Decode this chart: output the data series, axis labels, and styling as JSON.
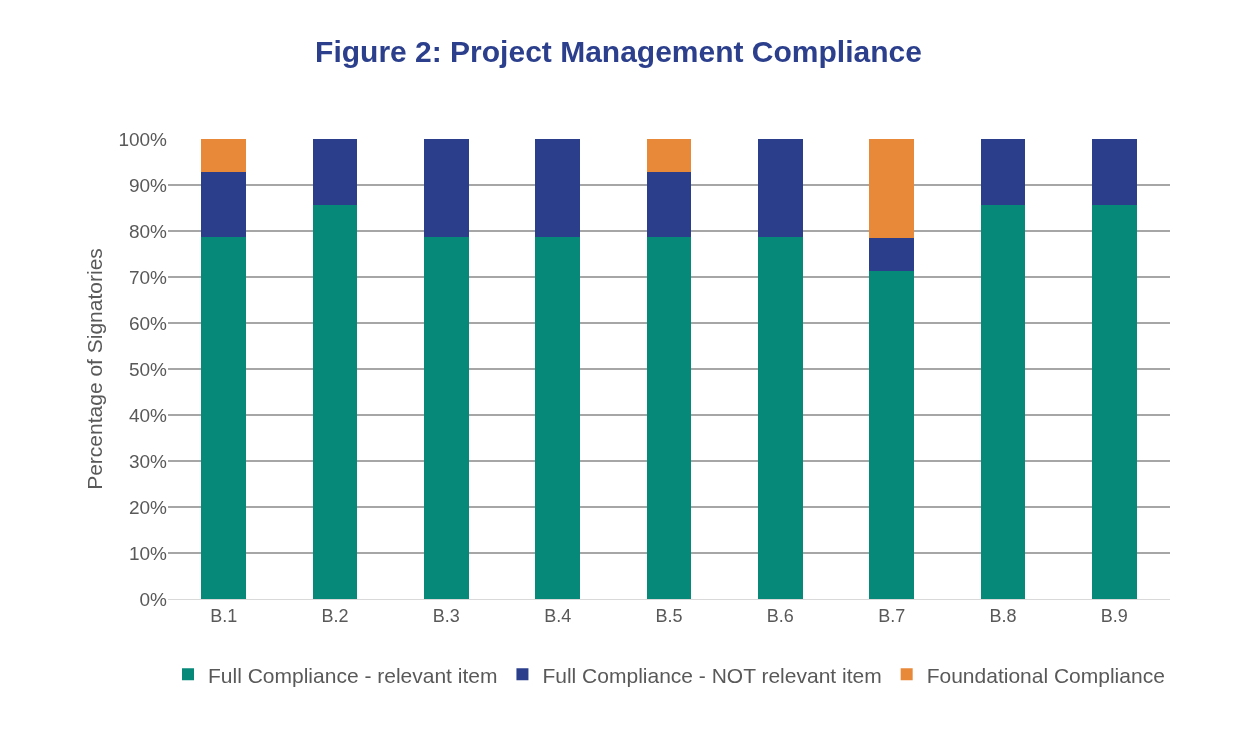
{
  "chart_data": {
    "type": "bar",
    "title": "Figure 2: Project Management Compliance",
    "ylabel": "Percentage of Signatories",
    "categories": [
      "B.1",
      "B.2",
      "B.3",
      "B.4",
      "B.5",
      "B.6",
      "B.7",
      "B.8",
      "B.9"
    ],
    "stacked": true,
    "series": [
      {
        "name": "Full Compliance - relevant item",
        "color": "#07897a",
        "values": [
          78.6,
          85.7,
          78.6,
          78.6,
          78.6,
          78.6,
          71.4,
          85.7,
          85.7
        ]
      },
      {
        "name": "Full Compliance - NOT relevant item",
        "color": "#2b3e8c",
        "values": [
          14.3,
          14.3,
          21.4,
          21.4,
          14.3,
          21.4,
          7.1,
          14.3,
          14.3
        ]
      },
      {
        "name": "Foundational Compliance",
        "color": "#e8893a",
        "values": [
          7.1,
          0,
          0,
          0,
          7.1,
          0,
          21.4,
          0,
          0
        ]
      }
    ],
    "ylim": [
      0,
      100
    ],
    "yticks": [
      {
        "value": 0,
        "label": "0%"
      },
      {
        "value": 10,
        "label": "10%"
      },
      {
        "value": 20,
        "label": "20%"
      },
      {
        "value": 30,
        "label": "30%"
      },
      {
        "value": 40,
        "label": "40%"
      },
      {
        "value": 50,
        "label": "50%"
      },
      {
        "value": 60,
        "label": "60%"
      },
      {
        "value": 70,
        "label": "70%"
      },
      {
        "value": 80,
        "label": "80%"
      },
      {
        "value": 90,
        "label": "90%"
      },
      {
        "value": 100,
        "label": "100%"
      }
    ],
    "grid": "y",
    "legend": "bottom"
  }
}
